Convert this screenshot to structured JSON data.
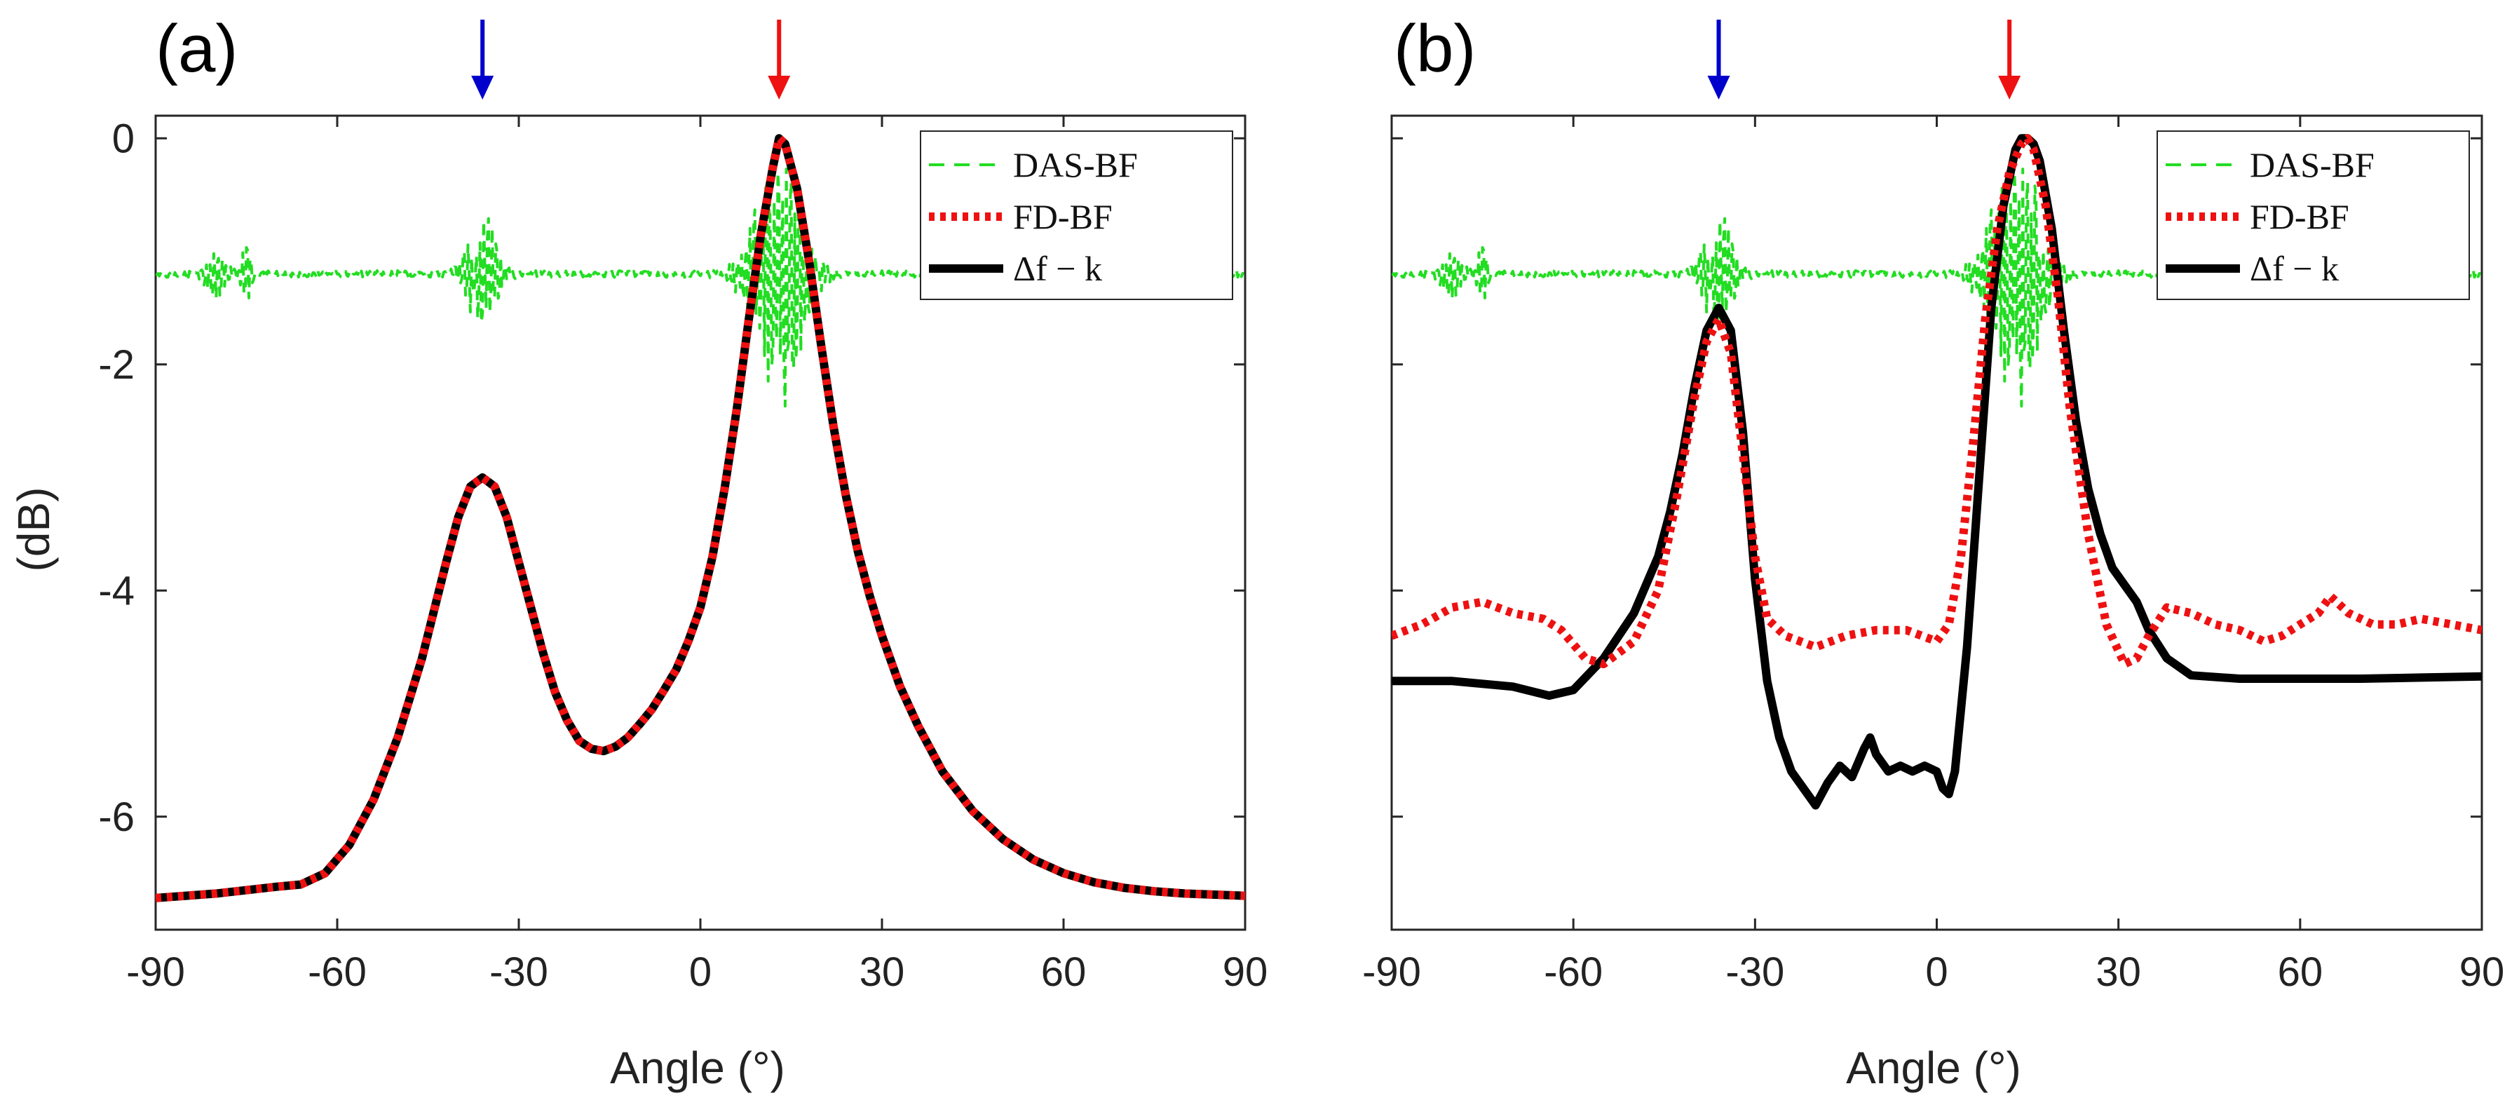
{
  "chart_data": [
    {
      "type": "line",
      "panel_label": "(a)",
      "xlabel": "Angle (°)",
      "ylabel": "(dB)",
      "xlim": [
        -90,
        90
      ],
      "ylim": [
        -7,
        0.2
      ],
      "x_ticks": [
        -90,
        -60,
        -30,
        0,
        30,
        60,
        90
      ],
      "x_tick_labels": [
        "-90",
        "-60",
        "-30",
        "0",
        "30",
        "60",
        "90"
      ],
      "y_ticks": [
        0,
        -2,
        -4,
        -6
      ],
      "y_tick_labels": [
        "0",
        "-2",
        "-4",
        "-6"
      ],
      "grid": false,
      "legend_position": "top-right",
      "arrows": [
        {
          "x": -36,
          "color": "#0000cc"
        },
        {
          "x": 13,
          "color": "#ee1111"
        }
      ],
      "series": [
        {
          "name": "DAS-BF",
          "color": "#22dd22",
          "style": "dashed",
          "center": -1.2,
          "bursts": [
            {
              "center": -80,
              "amp": 0.25,
              "width": 2
            },
            {
              "center": -75,
              "amp": 0.35,
              "width": 1
            },
            {
              "center": -36,
              "amp": 0.6,
              "width": 3
            },
            {
              "center": 13,
              "amp": 1.25,
              "width": 5
            }
          ]
        },
        {
          "name": "FD-BF",
          "color": "#ee1111",
          "style": "dotted",
          "x": [
            -90,
            -80,
            -70,
            -66,
            -62,
            -58,
            -54,
            -50,
            -46,
            -42,
            -40,
            -38,
            -36,
            -34,
            -32,
            -30,
            -28,
            -26,
            -24,
            -22,
            -20,
            -18,
            -16,
            -14,
            -12,
            -10,
            -8,
            -6,
            -4,
            -2,
            0,
            2,
            4,
            6,
            8,
            10,
            12,
            13,
            14,
            16,
            18,
            20,
            22,
            24,
            26,
            28,
            30,
            33,
            36,
            40,
            45,
            50,
            55,
            60,
            65,
            70,
            75,
            80,
            85,
            90
          ],
          "y": [
            -6.72,
            -6.68,
            -6.62,
            -6.6,
            -6.5,
            -6.25,
            -5.85,
            -5.3,
            -4.6,
            -3.75,
            -3.35,
            -3.08,
            -3.0,
            -3.08,
            -3.35,
            -3.75,
            -4.15,
            -4.55,
            -4.9,
            -5.15,
            -5.33,
            -5.4,
            -5.42,
            -5.38,
            -5.3,
            -5.18,
            -5.05,
            -4.88,
            -4.7,
            -4.45,
            -4.15,
            -3.7,
            -3.1,
            -2.4,
            -1.6,
            -0.85,
            -0.25,
            0.0,
            -0.05,
            -0.45,
            -1.1,
            -1.85,
            -2.55,
            -3.15,
            -3.65,
            -4.05,
            -4.4,
            -4.85,
            -5.2,
            -5.6,
            -5.95,
            -6.2,
            -6.38,
            -6.5,
            -6.58,
            -6.63,
            -6.66,
            -6.68,
            -6.69,
            -6.7
          ]
        },
        {
          "name": "Δf − k",
          "color": "#000000",
          "style": "solid",
          "x": [
            -90,
            -80,
            -70,
            -66,
            -62,
            -58,
            -54,
            -50,
            -46,
            -42,
            -40,
            -38,
            -36,
            -34,
            -32,
            -30,
            -28,
            -26,
            -24,
            -22,
            -20,
            -18,
            -16,
            -14,
            -12,
            -10,
            -8,
            -6,
            -4,
            -2,
            0,
            2,
            4,
            6,
            8,
            10,
            12,
            13,
            14,
            16,
            18,
            20,
            22,
            24,
            26,
            28,
            30,
            33,
            36,
            40,
            45,
            50,
            55,
            60,
            65,
            70,
            75,
            80,
            85,
            90
          ],
          "y": [
            -6.72,
            -6.68,
            -6.62,
            -6.6,
            -6.5,
            -6.25,
            -5.85,
            -5.3,
            -4.6,
            -3.75,
            -3.35,
            -3.08,
            -3.0,
            -3.08,
            -3.35,
            -3.75,
            -4.15,
            -4.55,
            -4.9,
            -5.15,
            -5.33,
            -5.4,
            -5.42,
            -5.38,
            -5.3,
            -5.18,
            -5.05,
            -4.88,
            -4.7,
            -4.45,
            -4.15,
            -3.7,
            -3.1,
            -2.4,
            -1.6,
            -0.85,
            -0.25,
            0.0,
            -0.05,
            -0.45,
            -1.1,
            -1.85,
            -2.55,
            -3.15,
            -3.65,
            -4.05,
            -4.4,
            -4.85,
            -5.2,
            -5.6,
            -5.95,
            -6.2,
            -6.38,
            -6.5,
            -6.58,
            -6.63,
            -6.66,
            -6.68,
            -6.69,
            -6.7
          ]
        }
      ]
    },
    {
      "type": "line",
      "panel_label": "(b)",
      "xlabel": "Angle (°)",
      "ylabel": "",
      "xlim": [
        -90,
        90
      ],
      "ylim": [
        -7,
        0.2
      ],
      "x_ticks": [
        -90,
        -60,
        -30,
        0,
        30,
        60,
        90
      ],
      "x_tick_labels": [
        "-90",
        "-60",
        "-30",
        "0",
        "30",
        "60",
        "90"
      ],
      "y_ticks": [
        0,
        -2,
        -4,
        -6
      ],
      "y_tick_labels": [],
      "grid": false,
      "legend_position": "top-right",
      "arrows": [
        {
          "x": -36,
          "color": "#0000cc"
        },
        {
          "x": 12,
          "color": "#ee1111"
        }
      ],
      "series": [
        {
          "name": "DAS-BF",
          "color": "#22dd22",
          "style": "dashed",
          "center": -1.2,
          "bursts": [
            {
              "center": -80,
              "amp": 0.25,
              "width": 2
            },
            {
              "center": -75,
              "amp": 0.35,
              "width": 1
            },
            {
              "center": -36,
              "amp": 0.6,
              "width": 3
            },
            {
              "center": 13,
              "amp": 1.25,
              "width": 5
            }
          ]
        },
        {
          "name": "FD-BF",
          "color": "#ee1111",
          "style": "dotted",
          "x": [
            -90,
            -85,
            -80,
            -75,
            -70,
            -65,
            -62,
            -58,
            -55,
            -50,
            -46,
            -43,
            -40,
            -38,
            -36,
            -34,
            -32,
            -30,
            -28,
            -25,
            -20,
            -15,
            -10,
            -5,
            0,
            2,
            4,
            6,
            8,
            10,
            12,
            14,
            15,
            16,
            18,
            20,
            22,
            25,
            28,
            31,
            33,
            35,
            38,
            42,
            46,
            50,
            54,
            57,
            60,
            63,
            65,
            68,
            72,
            76,
            80,
            85,
            90
          ],
          "y": [
            -4.4,
            -4.3,
            -4.15,
            -4.1,
            -4.2,
            -4.25,
            -4.35,
            -4.6,
            -4.65,
            -4.45,
            -4.0,
            -3.2,
            -2.3,
            -1.8,
            -1.6,
            -1.9,
            -2.8,
            -3.7,
            -4.25,
            -4.4,
            -4.5,
            -4.4,
            -4.35,
            -4.35,
            -4.45,
            -4.3,
            -3.7,
            -2.7,
            -1.6,
            -0.8,
            -0.3,
            -0.05,
            0.0,
            -0.1,
            -0.6,
            -1.4,
            -2.4,
            -3.5,
            -4.3,
            -4.65,
            -4.6,
            -4.4,
            -4.15,
            -4.2,
            -4.3,
            -4.35,
            -4.45,
            -4.4,
            -4.3,
            -4.2,
            -4.05,
            -4.2,
            -4.3,
            -4.3,
            -4.25,
            -4.3,
            -4.35
          ]
        },
        {
          "name": "Δf − k",
          "color": "#000000",
          "style": "solid",
          "x": [
            -90,
            -80,
            -70,
            -64,
            -60,
            -55,
            -50,
            -46,
            -44,
            -42,
            -40,
            -38,
            -36,
            -34,
            -32,
            -30,
            -28,
            -26,
            -24,
            -22,
            -20,
            -18,
            -16,
            -14,
            -12,
            -11,
            -10,
            -8,
            -6,
            -4,
            -2,
            0,
            1,
            2,
            3,
            5,
            7,
            9,
            11,
            13,
            14,
            15,
            16,
            17,
            19,
            21,
            23,
            25,
            27,
            29,
            31,
            33,
            35,
            38,
            42,
            50,
            60,
            70,
            80,
            90
          ],
          "y": [
            -4.8,
            -4.8,
            -4.85,
            -4.93,
            -4.88,
            -4.6,
            -4.2,
            -3.7,
            -3.3,
            -2.8,
            -2.2,
            -1.7,
            -1.5,
            -1.7,
            -2.6,
            -3.9,
            -4.8,
            -5.3,
            -5.6,
            -5.75,
            -5.9,
            -5.7,
            -5.55,
            -5.65,
            -5.4,
            -5.3,
            -5.45,
            -5.6,
            -5.55,
            -5.6,
            -5.55,
            -5.6,
            -5.75,
            -5.8,
            -5.6,
            -4.5,
            -3.0,
            -1.5,
            -0.6,
            -0.1,
            0.0,
            0.0,
            -0.05,
            -0.2,
            -0.8,
            -1.7,
            -2.5,
            -3.1,
            -3.5,
            -3.8,
            -3.95,
            -4.1,
            -4.35,
            -4.6,
            -4.75,
            -4.78,
            -4.78,
            -4.78,
            -4.77,
            -4.76
          ]
        }
      ]
    }
  ]
}
